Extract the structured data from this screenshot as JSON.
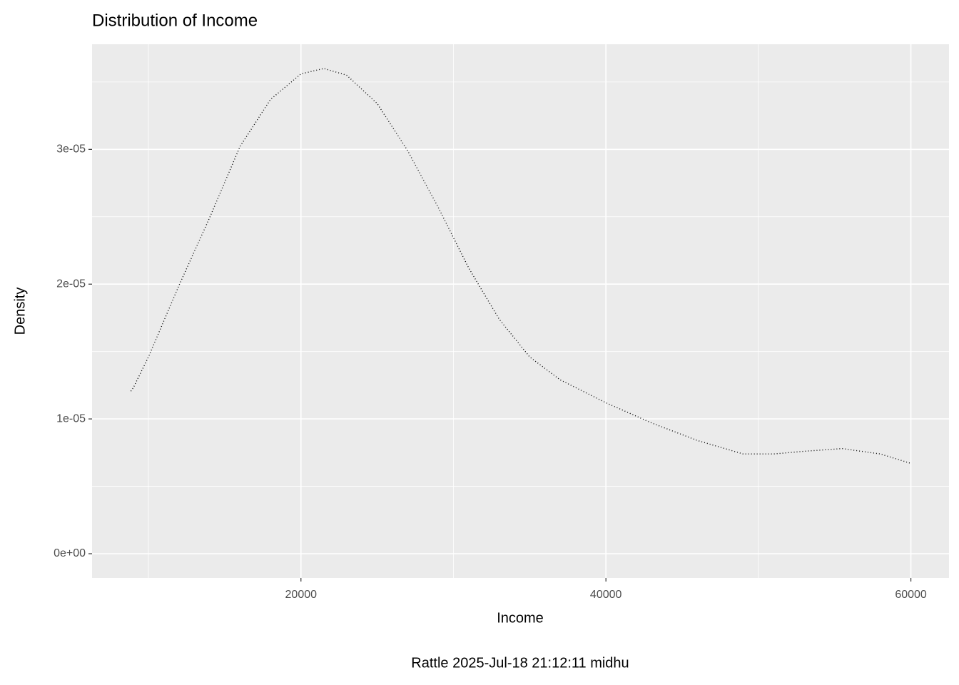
{
  "chart_data": {
    "type": "line",
    "title": "Distribution of Income",
    "x_label": "Income",
    "y_label": "Density",
    "caption": "Rattle 2025-Jul-18 21:12:11 midhu",
    "x": [
      8845,
      9000,
      10000,
      12000,
      14000,
      16000,
      18000,
      20000,
      21500,
      23000,
      25000,
      27000,
      29000,
      31000,
      33000,
      35000,
      37000,
      40000,
      43000,
      46000,
      49000,
      51000,
      53000,
      55500,
      58000,
      60000
    ],
    "series": [
      {
        "color": "#000000",
        "values": [
          1.206e-05,
          1.23e-05,
          1.46e-05,
          1.99e-05,
          2.49e-05,
          3.02e-05,
          3.37e-05,
          3.56e-05,
          3.6e-05,
          3.55e-05,
          3.34e-05,
          2.99e-05,
          2.57e-05,
          2.12e-05,
          1.74e-05,
          1.46e-05,
          1.29e-05,
          1.12e-05,
          9.7e-06,
          8.4e-06,
          7.4e-06,
          7.4e-06,
          7.6e-06,
          7.8e-06,
          7.4e-06,
          6.7e-06
        ]
      }
    ],
    "xlim": [
      6300,
      62500
    ],
    "ylim": [
      -1.8e-06,
      3.78e-05
    ],
    "xticks": [
      20000,
      40000,
      60000
    ],
    "yticks": [
      {
        "value": 0,
        "label": "0e+00"
      },
      {
        "value": 1e-05,
        "label": "1e-05"
      },
      {
        "value": 2e-05,
        "label": "2e-05"
      },
      {
        "value": 3e-05,
        "label": "3e-05"
      }
    ],
    "x_minor_grid": [
      10000,
      30000,
      50000
    ],
    "y_minor_grid": [
      5e-06,
      1.5e-05,
      2.5e-05,
      3.5e-05
    ],
    "grid": true,
    "line_style": "dotted"
  }
}
